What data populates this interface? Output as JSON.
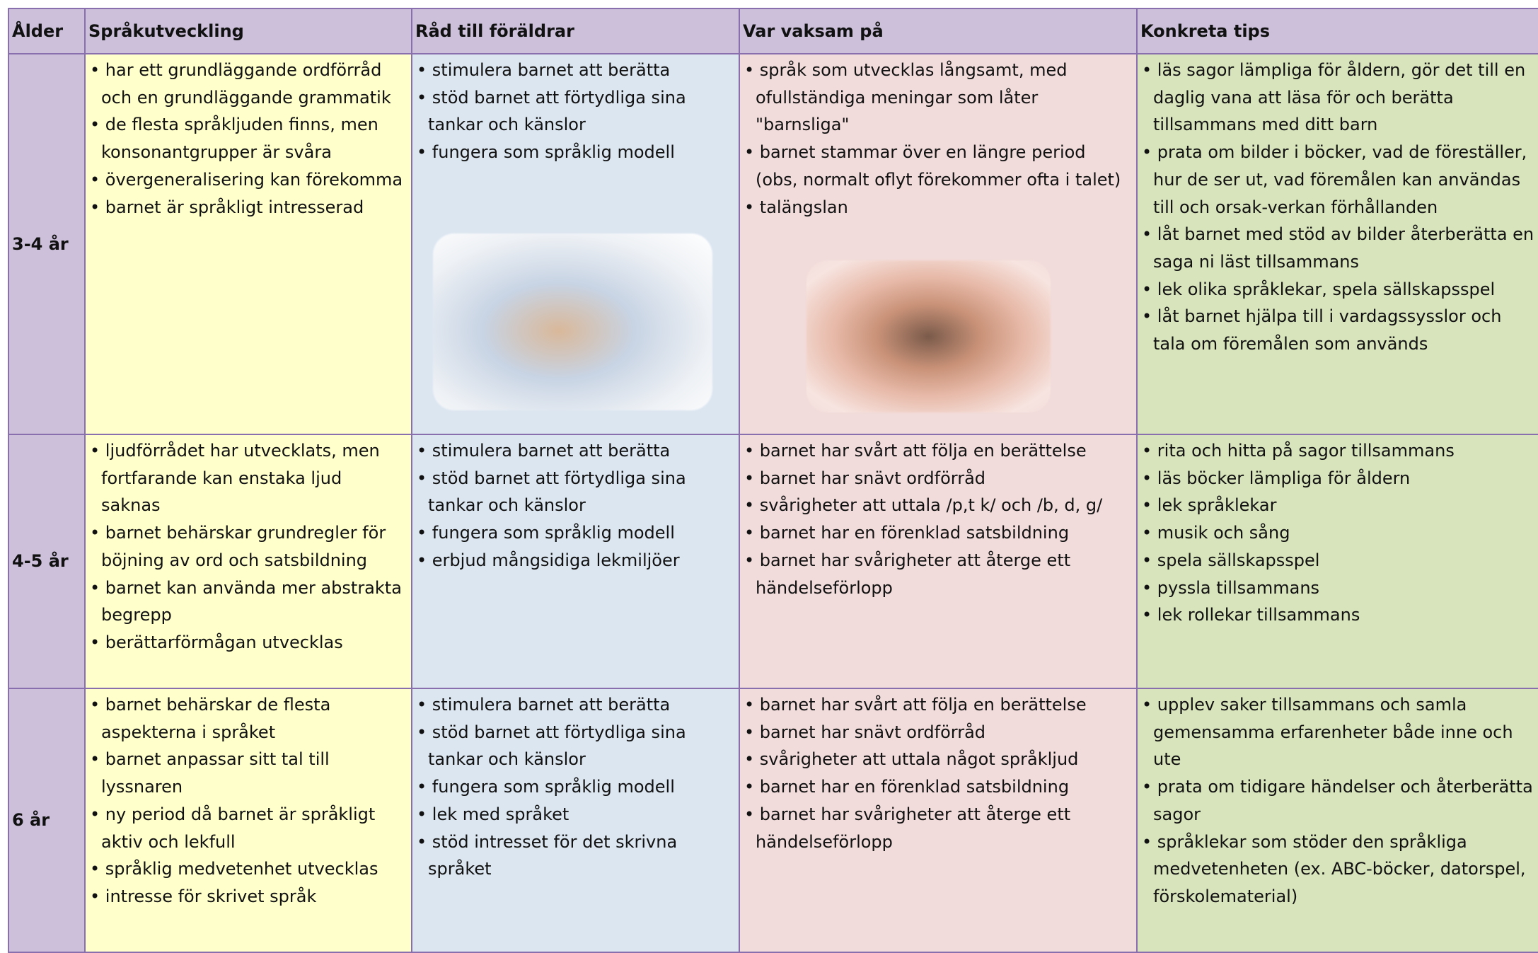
{
  "table": {
    "header": [
      "Ålder",
      "Språkutveckling",
      "Råd till föräldrar",
      "Var vaksam på",
      "Konkreta tips"
    ],
    "rows": [
      [
        "3-4 år",
        [
          "• har ett grundläggande ordförråd och en grundläggande grammatik",
          "• de flesta språkljuden finns, men konsonantgrupper är svåra",
          "• övergeneralisering kan förekomma",
          "• barnet är språkligt intresserad"
        ],
        [
          "• stimulera barnet att berätta",
          "• stöd barnet att förtydliga sina tankar och känslor",
          "• fungera som språklig modell"
        ],
        [
          "• språk som utvecklas långsamt, med ofullständiga meningar som låter \"barnsliga\"",
          "• barnet stammar över en längre period (obs, normalt oflyt förekommer ofta i talet)",
          "• talängslan"
        ],
        [
          "• läs sagor lämpliga för åldern, gör det till en daglig vana att läsa för och berätta tillsammans med ditt barn",
          "• prata om bilder i böcker, vad de föreställer, hur de ser ut, vad föremålen kan användas till och orsak-verkan förhållanden",
          "• låt barnet med stöd av bilder återberätta en saga ni läst tillsammans",
          "• lek olika språklekar, spela sällskapsspel",
          "• låt barnet hjälpa till i vardagssysslor och tala om föremålen som används"
        ]
      ],
      [
        "4-5 år",
        [
          "• ljudförrådet har utvecklats, men fortfarande kan enstaka ljud saknas",
          "• barnet behärskar grundregler för böjning av ord och satsbildning",
          "• barnet kan använda mer abstrakta begrepp",
          "• berättarförmågan utvecklas"
        ],
        [
          "• stimulera barnet att berätta",
          "• stöd barnet att förtydliga sina tankar och känslor",
          "• fungera som språklig modell",
          "• erbjud mångsidiga lekmiljöer"
        ],
        [
          "• barnet har svårt att följa en berättelse",
          "• barnet har snävt ordförråd",
          "• svårigheter att uttala /p,t k/ och /b, d, g/",
          "• barnet har en förenklad satsbildning",
          "• barnet har svårigheter att återge ett händelseförlopp"
        ],
        [
          "• rita och hitta på sagor tillsammans",
          "• läs böcker lämpliga för åldern",
          "• lek språklekar",
          "• musik och sång",
          "• spela sällskapsspel",
          "• pyssla tillsammans",
          "• lek rollekar tillsammans"
        ]
      ],
      [
        "6 år",
        [
          "• barnet behärskar de flesta aspekterna i språket",
          "• barnet anpassar sitt tal till lyssnaren",
          "• ny period då barnet är språkligt aktiv och lekfull",
          "• språklig medvetenhet utvecklas",
          "• intresse för skrivet språk"
        ],
        [
          "• stimulera barnet att berätta",
          "• stöd barnet att förtydliga sina tankar och känslor",
          "• fungera som språklig modell",
          "• lek med språket",
          "• stöd intresset för det skrivna språket"
        ],
        [
          "• barnet har svårt att följa en berättelse",
          "• barnet har snävt ordförråd",
          "• svårigheter att uttala något språkljud",
          "• barnet har en förenklad satsbildning",
          "• barnet har svårigheter att återge ett händelseförlopp"
        ],
        [
          "• upplev saker tillsammans och samla gemensamma erfarenheter både inne och ute",
          "• prata om tidigare händelser och återberätta sagor",
          "• språklekar som stöder den språkliga medvetenheten (ex. ABC-böcker, datorspel, förskolematerial)"
        ]
      ]
    ]
  }
}
